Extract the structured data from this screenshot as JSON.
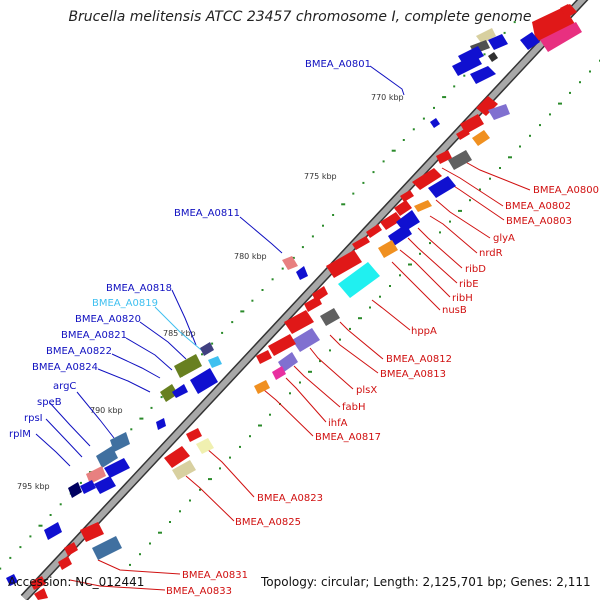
{
  "title": "Brucella melitensis ATCC 23457 chromosome I, complete genome",
  "footer": {
    "accession": "Accession: NC_012441",
    "summary": "Topology: circular; Length: 2,125,701 bp; Genes: 2,111"
  },
  "colors": {
    "backbone": "#999999",
    "backbone_edge": "#333333",
    "label_blue": "#1010c0",
    "label_red": "#d01010",
    "label_cyan": "#40c0f0",
    "tick": "#2a8a2a"
  },
  "kbp_ticks": [
    "770 kbp",
    "775 kbp",
    "780 kbp",
    "785 kbp",
    "790 kbp",
    "795 kbp"
  ],
  "labels": {
    "left": [
      {
        "text": "BMEA_A0801",
        "color": "blue"
      },
      {
        "text": "BMEA_A0811",
        "color": "blue"
      },
      {
        "text": "BMEA_A0818",
        "color": "blue"
      },
      {
        "text": "BMEA_A0819",
        "color": "cyan"
      },
      {
        "text": "BMEA_A0820",
        "color": "blue"
      },
      {
        "text": "BMEA_A0821",
        "color": "blue"
      },
      {
        "text": "BMEA_A0822",
        "color": "blue"
      },
      {
        "text": "BMEA_A0824",
        "color": "blue"
      },
      {
        "text": "argC",
        "color": "blue"
      },
      {
        "text": "speB",
        "color": "blue"
      },
      {
        "text": "rpsI",
        "color": "blue"
      },
      {
        "text": "rplM",
        "color": "blue"
      }
    ],
    "right": [
      {
        "text": "BMEA_A0800",
        "color": "red"
      },
      {
        "text": "BMEA_A0802",
        "color": "red"
      },
      {
        "text": "BMEA_A0803",
        "color": "red"
      },
      {
        "text": "glyA",
        "color": "red"
      },
      {
        "text": "nrdR",
        "color": "red"
      },
      {
        "text": "ribD",
        "color": "red"
      },
      {
        "text": "ribE",
        "color": "red"
      },
      {
        "text": "ribH",
        "color": "red"
      },
      {
        "text": "nusB",
        "color": "red"
      },
      {
        "text": "hppA",
        "color": "red"
      },
      {
        "text": "BMEA_A0812",
        "color": "red"
      },
      {
        "text": "BMEA_A0813",
        "color": "red"
      },
      {
        "text": "plsX",
        "color": "red"
      },
      {
        "text": "fabH",
        "color": "red"
      },
      {
        "text": "ihfA",
        "color": "red"
      },
      {
        "text": "BMEA_A0817",
        "color": "red"
      },
      {
        "text": "BMEA_A0823",
        "color": "red"
      },
      {
        "text": "BMEA_A0825",
        "color": "red"
      },
      {
        "text": "BMEA_A0831",
        "color": "red"
      },
      {
        "text": "BMEA_A0833",
        "color": "red"
      }
    ]
  }
}
